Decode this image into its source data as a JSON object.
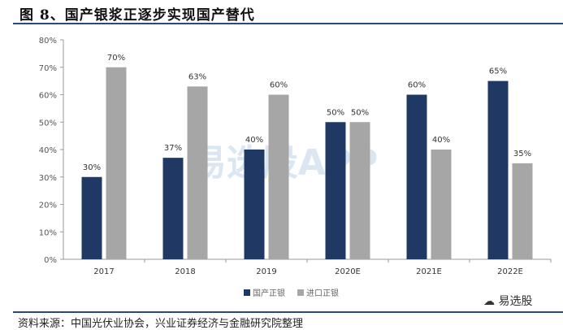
{
  "title": "图 8、国产银浆正逐步实现国产替代",
  "source": "资料来源：中国光伏业协会，兴业证券经济与金融研究院整理",
  "watermark": "易选股APP",
  "brand": "易选股",
  "chart_data": {
    "type": "bar",
    "categories": [
      "2017",
      "2018",
      "2019",
      "2020E",
      "2021E",
      "2022E"
    ],
    "series": [
      {
        "name": "国产正银",
        "color": "#1f3864",
        "values": [
          30,
          37,
          40,
          50,
          60,
          65
        ]
      },
      {
        "name": "进口正银",
        "color": "#a6a6a6",
        "values": [
          70,
          63,
          60,
          50,
          40,
          35
        ]
      }
    ],
    "ylim": [
      0,
      80
    ],
    "yticks": [
      "0%",
      "10%",
      "20%",
      "30%",
      "40%",
      "50%",
      "60%",
      "70%",
      "80%"
    ],
    "legend": "bottom",
    "grid": false
  }
}
